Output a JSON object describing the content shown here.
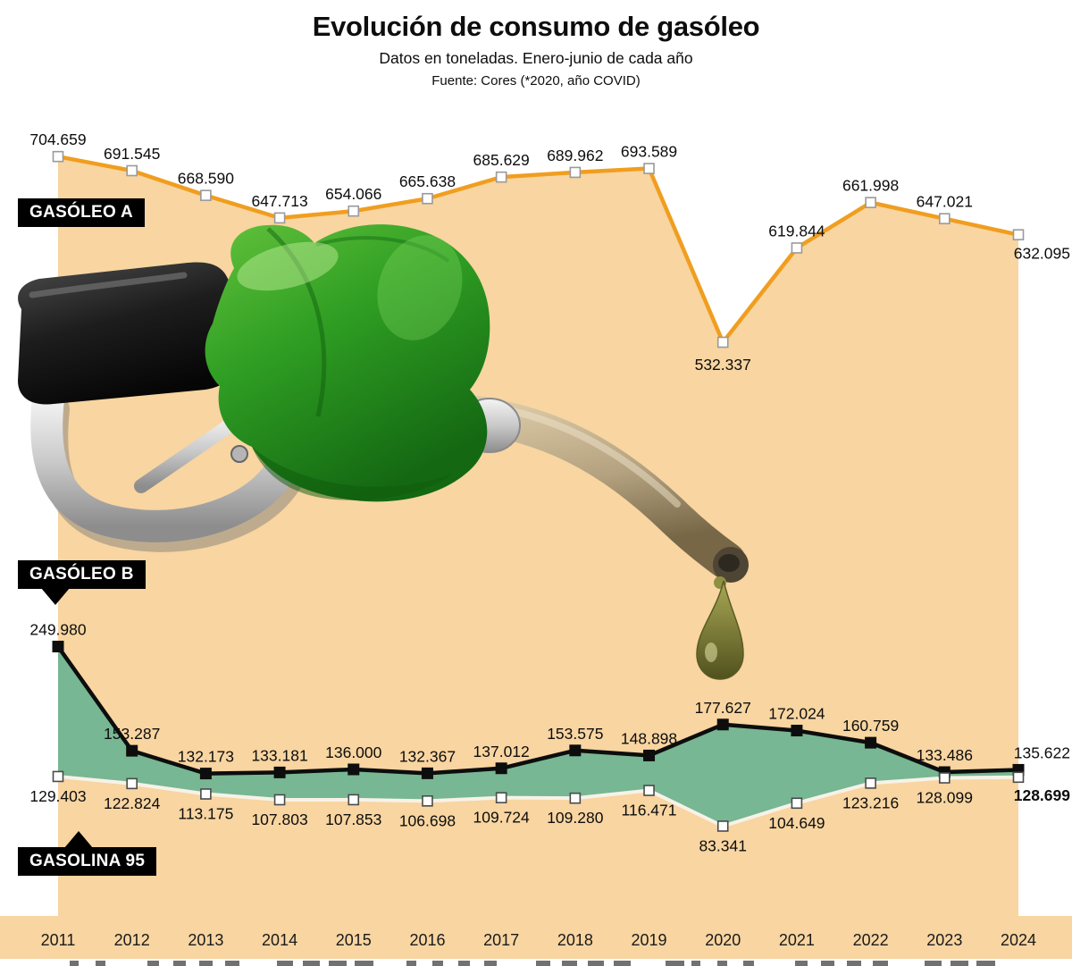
{
  "chart_data": {
    "type": "area",
    "title": "Evolución de consumo de gasóleo",
    "subtitle": "Datos en toneladas. Enero-junio de cada año",
    "source": "Fuente: Cores (*2020, año COVID)",
    "unit": "toneladas",
    "note": "*2020, año COVID",
    "x": [
      "2011",
      "2012",
      "2013",
      "2014",
      "2015",
      "2016",
      "2017",
      "2018",
      "2019",
      "2020",
      "2021",
      "2022",
      "2023",
      "2024"
    ],
    "ylim": [
      0,
      830000
    ],
    "grid": false,
    "legend_position": "inline-black-badges",
    "series": [
      {
        "name": "GASÓLEO A",
        "line_color": "#f09e1f",
        "area_color": "#f8d5a1",
        "marker": "white-square",
        "values": [
          704659,
          691545,
          668590,
          647713,
          654066,
          665638,
          685629,
          689962,
          693589,
          532337,
          619844,
          661998,
          647021,
          632095
        ],
        "labels": [
          "704.659",
          "691.545",
          "668.590",
          "647.713",
          "654.066",
          "665.638",
          "685.629",
          "689.962",
          "693.589",
          "532.337",
          "619.844",
          "661.998",
          "647.021",
          "632.095"
        ]
      },
      {
        "name": "GASÓLEO B",
        "line_color": "#0d0d0d",
        "area_color": "#77b793",
        "area_note": "filled down to GASOLINA 95 line",
        "marker": "black-square",
        "values": [
          249980,
          153287,
          132173,
          133181,
          136000,
          132367,
          137012,
          153575,
          148898,
          177627,
          172024,
          160759,
          133486,
          135622
        ],
        "labels": [
          "249.980",
          "153.287",
          "132.173",
          "133.181",
          "136.000",
          "132.367",
          "137.012",
          "153.575",
          "148.898",
          "177.627",
          "172.024",
          "160.759",
          "133.486",
          "135.622"
        ]
      },
      {
        "name": "GASOLINA 95",
        "line_color": "#f7f2e8",
        "marker": "white-square",
        "values": [
          129403,
          122824,
          113175,
          107803,
          107853,
          106698,
          109724,
          109280,
          116471,
          83341,
          104649,
          123216,
          128099,
          128699
        ],
        "labels": [
          "129.403",
          "122.824",
          "113.175",
          "107.803",
          "107.853",
          "106.698",
          "109.724",
          "109.280",
          "116.471",
          "83.341",
          "104.649",
          "123.216",
          "128.099",
          "128.699"
        ],
        "emphasized_label_index": 13
      }
    ]
  },
  "colors": {
    "background": "#ffffff",
    "axis_band": "#f8d5a1",
    "axis_text": "#1a1a1a",
    "value_label_text": "#0d0d0d",
    "nozzle_green": "#2f9e23",
    "drop_olive": "#7a7a33"
  }
}
